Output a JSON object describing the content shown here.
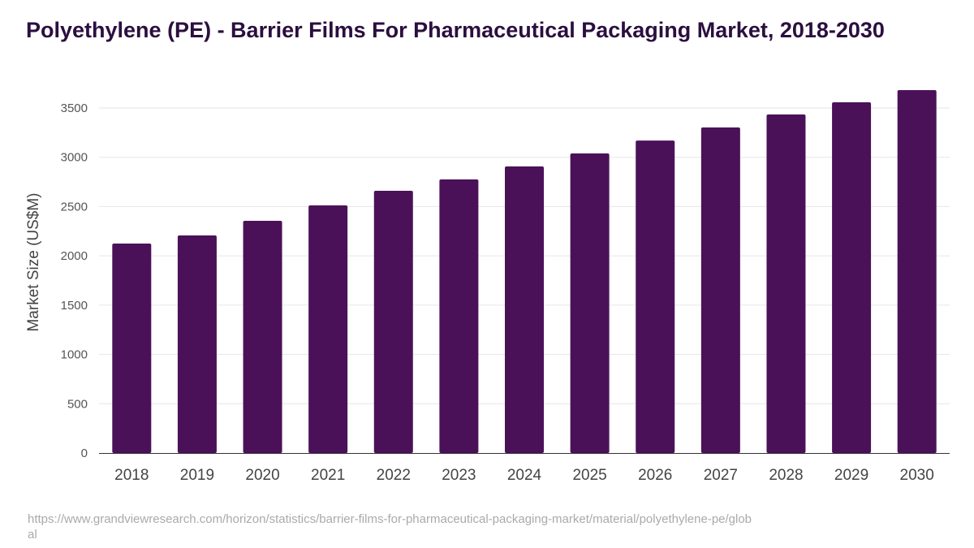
{
  "chart_data": {
    "type": "bar",
    "title": "Polyethylene (PE) - Barrier Films For Pharmaceutical Packaging Market, 2018-2030",
    "xlabel": "",
    "ylabel": "Market Size (US$M)",
    "ylim": [
      0,
      3500
    ],
    "yticks": [
      0,
      500,
      1000,
      1500,
      2000,
      2500,
      3000,
      3500
    ],
    "grid": true,
    "categories": [
      "2018",
      "2019",
      "2020",
      "2021",
      "2022",
      "2023",
      "2024",
      "2025",
      "2026",
      "2027",
      "2028",
      "2029",
      "2030"
    ],
    "values": [
      2125,
      2207,
      2355,
      2512,
      2660,
      2775,
      2907,
      3039,
      3170,
      3302,
      3434,
      3558,
      3681
    ],
    "bar_color": "#4b1158"
  },
  "source": "https://www.grandviewresearch.com/horizon/statistics/barrier-films-for-pharmaceutical-packaging-market/material/polyethylene-pe/global"
}
